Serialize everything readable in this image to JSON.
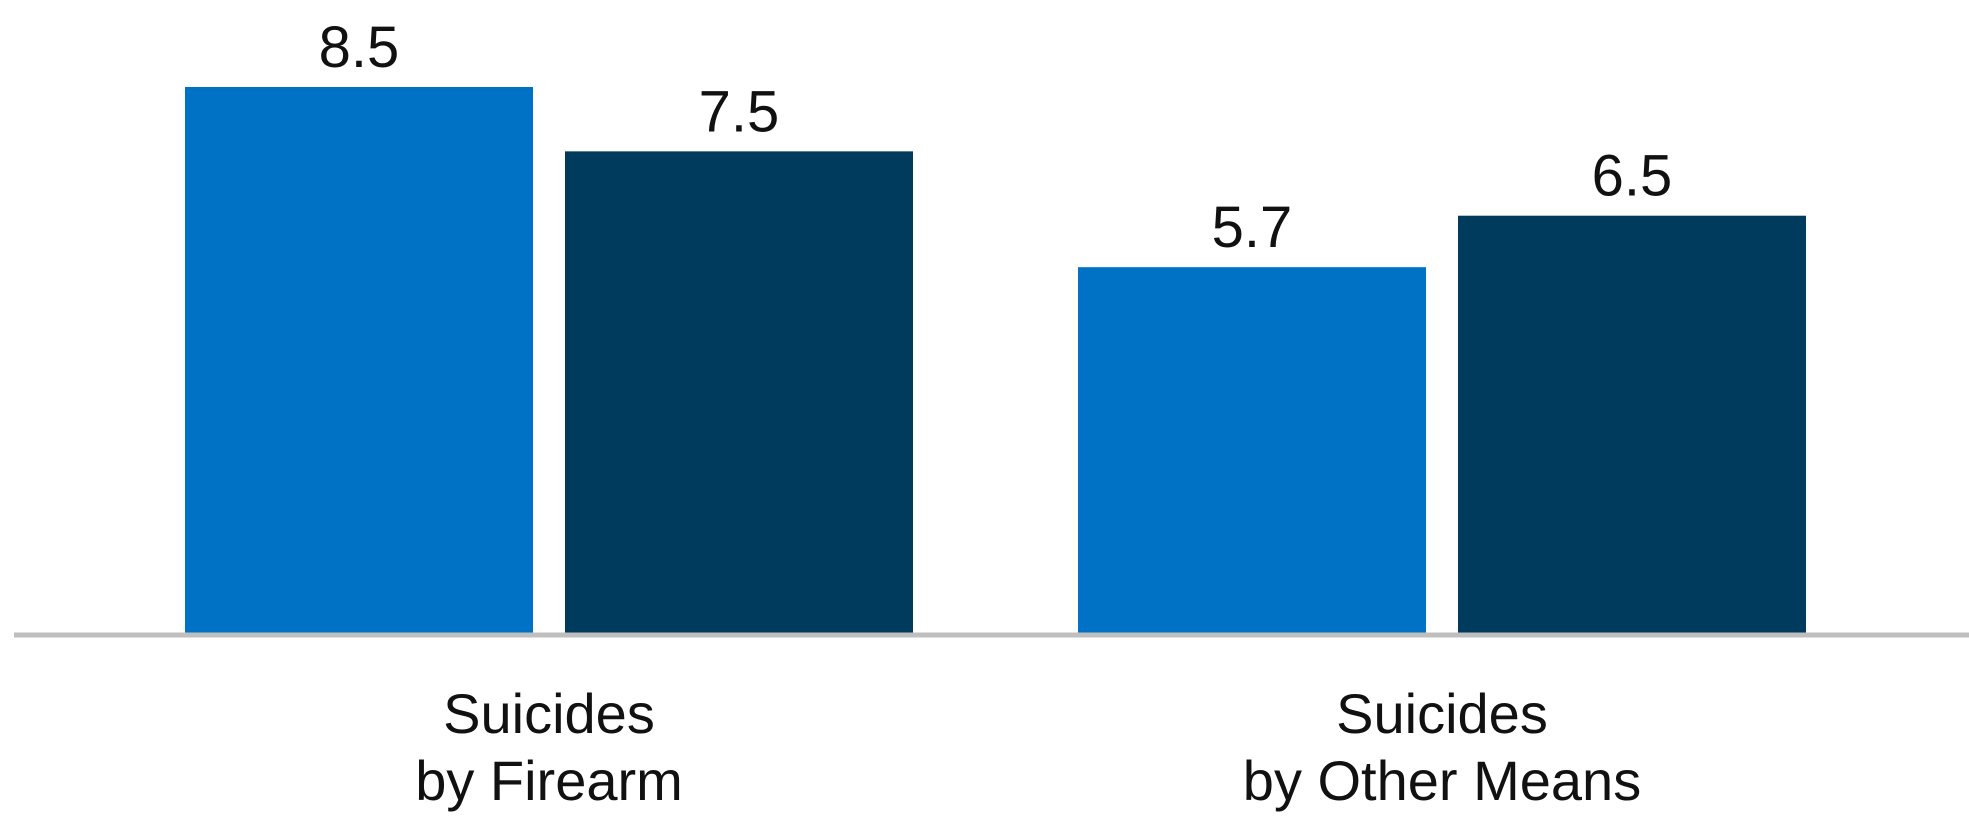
{
  "chart_data": {
    "type": "bar",
    "categories": [
      [
        "Suicides",
        "by Firearm"
      ],
      [
        "Suicides",
        "by Other Means"
      ]
    ],
    "series": [
      {
        "values": [
          8.5,
          5.7
        ],
        "color": "#0072C6"
      },
      {
        "values": [
          7.5,
          6.5
        ],
        "color": "#003A5D"
      }
    ],
    "data_labels": [
      [
        "8.5",
        "5.7"
      ],
      [
        "7.5",
        "6.5"
      ]
    ],
    "ylim": [
      0,
      8.5
    ],
    "grid": false,
    "legend": "none",
    "baseline_color": "#BFBFBF"
  }
}
